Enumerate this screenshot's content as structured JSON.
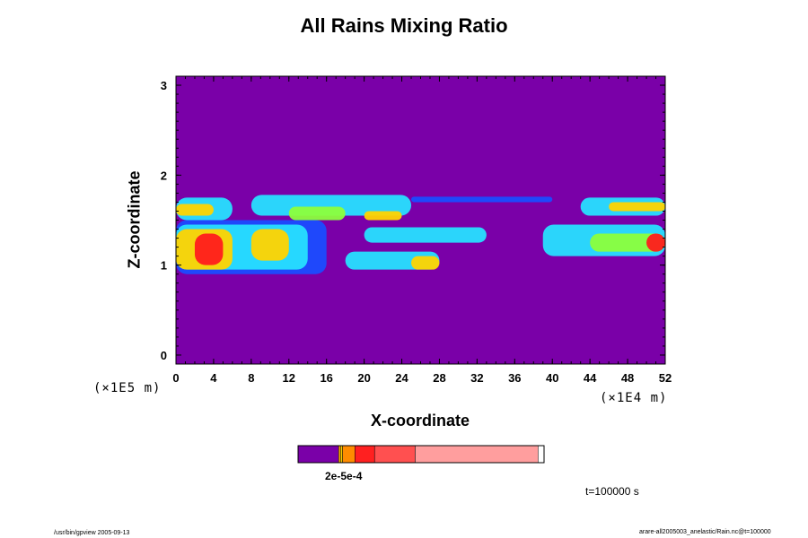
{
  "chart_data": {
    "type": "heatmap",
    "title": "All Rains Mixing Ratio",
    "xlabel": "X-coordinate",
    "ylabel": "Z-coordinate",
    "x_unit": "(×1E4 m)",
    "y_unit": "(×1E5 m)",
    "xlim": [
      0,
      52
    ],
    "ylim": [
      -0.1,
      3.1
    ],
    "x_ticks": [
      "0",
      "4",
      "8",
      "12",
      "16",
      "20",
      "24",
      "28",
      "32",
      "36",
      "40",
      "44",
      "48",
      "52"
    ],
    "y_ticks": [
      "0",
      "1",
      "2",
      "3"
    ],
    "background_color": "#7a00a8",
    "colorbar": {
      "label": "2e-5e-4",
      "colors": [
        "#7a00a8",
        "#ffb000",
        "#ffd000",
        "#ff8c00",
        "#ff2020",
        "#ff5050",
        "#ff9e9e"
      ],
      "fractions": [
        0.165,
        0.008,
        0.008,
        0.05,
        0.08,
        0.165,
        0.5
      ]
    },
    "cells": [
      {
        "x0": 0,
        "x1": 6,
        "z0": 1.5,
        "z1": 1.75,
        "level": 2
      },
      {
        "x0": 0,
        "x1": 4,
        "z0": 1.55,
        "z1": 1.68,
        "level": 4
      },
      {
        "x0": 8,
        "x1": 25,
        "z0": 1.55,
        "z1": 1.78,
        "level": 2
      },
      {
        "x0": 12,
        "x1": 18,
        "z0": 1.5,
        "z1": 1.65,
        "level": 3
      },
      {
        "x0": 20,
        "x1": 24,
        "z0": 1.5,
        "z1": 1.6,
        "level": 4
      },
      {
        "x0": 25,
        "x1": 40,
        "z0": 1.7,
        "z1": 1.76,
        "level": 1
      },
      {
        "x0": 43,
        "x1": 52,
        "z0": 1.55,
        "z1": 1.75,
        "level": 2
      },
      {
        "x0": 46,
        "x1": 52,
        "z0": 1.6,
        "z1": 1.7,
        "level": 4
      },
      {
        "x0": 0,
        "x1": 16,
        "z0": 0.9,
        "z1": 1.5,
        "level": 1
      },
      {
        "x0": 0,
        "x1": 14,
        "z0": 0.95,
        "z1": 1.45,
        "level": 2
      },
      {
        "x0": 0,
        "x1": 6,
        "z0": 0.95,
        "z1": 1.4,
        "level": 4
      },
      {
        "x0": 2,
        "x1": 5,
        "z0": 1.0,
        "z1": 1.35,
        "level": 5
      },
      {
        "x0": 8,
        "x1": 12,
        "z0": 1.05,
        "z1": 1.4,
        "level": 4
      },
      {
        "x0": 20,
        "x1": 33,
        "z0": 1.25,
        "z1": 1.42,
        "level": 2
      },
      {
        "x0": 18,
        "x1": 28,
        "z0": 0.95,
        "z1": 1.15,
        "level": 2
      },
      {
        "x0": 25,
        "x1": 28,
        "z0": 0.95,
        "z1": 1.1,
        "level": 4
      },
      {
        "x0": 39,
        "x1": 52,
        "z0": 1.1,
        "z1": 1.45,
        "level": 2
      },
      {
        "x0": 44,
        "x1": 52,
        "z0": 1.15,
        "z1": 1.35,
        "level": 3
      },
      {
        "x0": 50,
        "x1": 52,
        "z0": 1.15,
        "z1": 1.35,
        "level": 5
      }
    ],
    "level_colors": [
      "#1a4cff",
      "#27e0ff",
      "#8cff3c",
      "#ffd400",
      "#ff1c1c"
    ],
    "grid": false
  },
  "time_label": "t=100000 s",
  "footer_left": "/usr/bin/gpview 2005-09-13",
  "footer_right": "arare-all2005003_anelastic/Rain.nc@t=100000"
}
